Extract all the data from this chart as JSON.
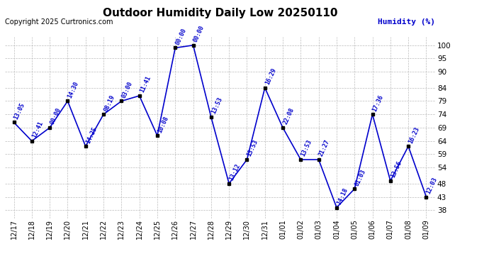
{
  "title": "Outdoor Humidity Daily Low 20250110",
  "copyright": "Copyright 2025 Curtronics.com",
  "ylabel": "Humidity (%)",
  "bg_color": "#ffffff",
  "line_color": "#0000cc",
  "marker_color": "#000000",
  "label_color": "#0000cc",
  "dates": [
    "12/17",
    "12/18",
    "12/19",
    "12/20",
    "12/21",
    "12/22",
    "12/23",
    "12/24",
    "12/25",
    "12/26",
    "12/27",
    "12/28",
    "12/29",
    "12/30",
    "12/31",
    "01/01",
    "01/02",
    "01/03",
    "01/04",
    "01/05",
    "01/06",
    "01/07",
    "01/08",
    "01/09"
  ],
  "values": [
    71,
    64,
    69,
    79,
    62,
    74,
    79,
    81,
    66,
    99,
    100,
    73,
    48,
    57,
    84,
    69,
    57,
    57,
    39,
    46,
    74,
    49,
    62,
    43
  ],
  "times": [
    "13:05",
    "12:41",
    "00:00",
    "14:30",
    "14:25",
    "08:19",
    "03:00",
    "11:41",
    "10:08",
    "00:00",
    "00:00",
    "13:53",
    "13:12",
    "13:53",
    "16:29",
    "22:08",
    "13:53",
    "21:27",
    "14:18",
    "01:03",
    "17:36",
    "13:56",
    "16:23",
    "12:03"
  ],
  "yticks": [
    38,
    43,
    48,
    54,
    59,
    64,
    69,
    74,
    79,
    84,
    90,
    95,
    100
  ],
  "ylim": [
    35,
    103
  ],
  "grid_color": "#bbbbbb"
}
